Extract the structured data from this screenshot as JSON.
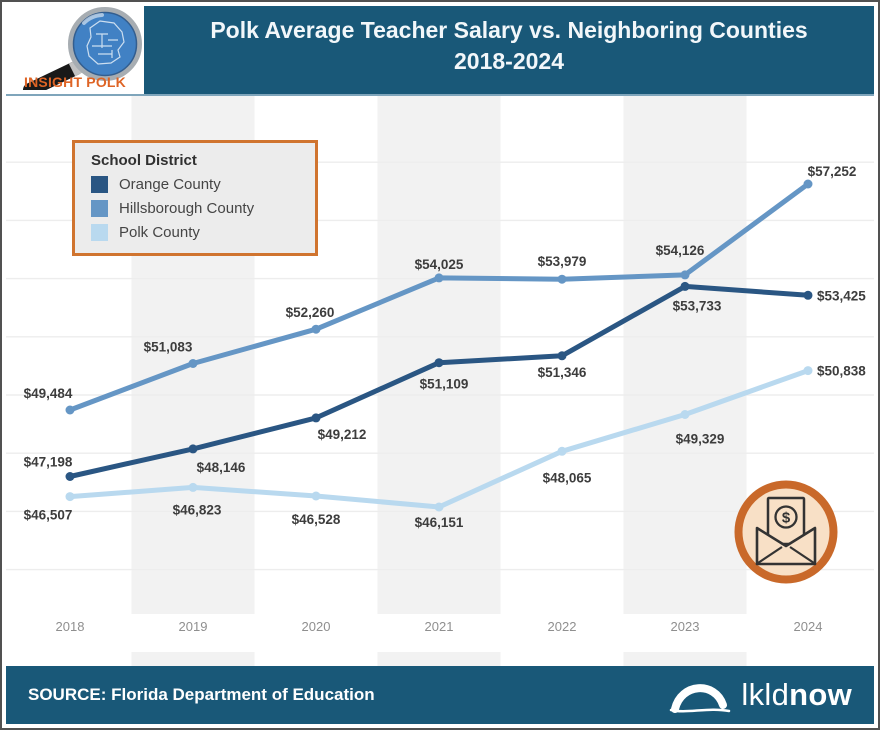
{
  "header": {
    "logo_text": "INSIGHT POLK",
    "title_line1": "Polk Average Teacher Salary vs. Neighboring Counties",
    "title_line2": "2018-2024"
  },
  "legend": {
    "title": "School District"
  },
  "chart_data": {
    "type": "line",
    "title": "Polk Average Teacher Salary vs. Neighboring Counties 2018-2024",
    "x": [
      "2018",
      "2019",
      "2020",
      "2021",
      "2022",
      "2023",
      "2024"
    ],
    "series": [
      {
        "name": "Orange County",
        "color": "#2a5683",
        "values": [
          47198,
          48146,
          49212,
          51109,
          51346,
          53733,
          53425
        ],
        "label_offsets": [
          {
            "dx": -22,
            "dy": -10
          },
          {
            "dx": 28,
            "dy": 23
          },
          {
            "dx": 26,
            "dy": 21
          },
          {
            "dx": 5,
            "dy": 26
          },
          {
            "dx": 0,
            "dy": 21
          },
          {
            "dx": 12,
            "dy": 24
          },
          {
            "dx": 9,
            "dy": 5,
            "anchor": "start"
          }
        ]
      },
      {
        "name": "Hillsborough County",
        "color": "#6596c5",
        "values": [
          49484,
          51083,
          52260,
          54025,
          53979,
          54126,
          57252
        ],
        "label_offsets": [
          {
            "dx": -22,
            "dy": -12
          },
          {
            "dx": -25,
            "dy": -12
          },
          {
            "dx": -6,
            "dy": -12
          },
          {
            "dx": 0,
            "dy": -9
          },
          {
            "dx": 0,
            "dy": -13
          },
          {
            "dx": -5,
            "dy": -20
          },
          {
            "dx": 24,
            "dy": -8
          }
        ]
      },
      {
        "name": "Polk County",
        "color": "#b9d9ef",
        "values": [
          46507,
          46823,
          46528,
          46151,
          48065,
          49329,
          50838
        ],
        "label_offsets": [
          {
            "dx": -22,
            "dy": 23
          },
          {
            "dx": 4,
            "dy": 27
          },
          {
            "dx": 0,
            "dy": 28
          },
          {
            "dx": 0,
            "dy": 20
          },
          {
            "dx": 5,
            "dy": 31
          },
          {
            "dx": 15,
            "dy": 29
          },
          {
            "dx": 9,
            "dy": 5,
            "anchor": "start"
          }
        ]
      }
    ],
    "value_prefix": "$",
    "xlabel": "",
    "ylabel": "",
    "ylim": [
      44000,
      58000
    ],
    "grid": "faint-horizontal-every-2000",
    "shaded_year_columns": [
      "2019",
      "2021",
      "2023"
    ],
    "legend_position": "top-left"
  },
  "icons": {
    "money_symbol": "$"
  },
  "footer": {
    "source": "SOURCE: Florida Department of Education",
    "brand_light": "lkld",
    "brand_bold": "now"
  },
  "colors": {
    "teal": "#195878",
    "band": "#f2f2f2",
    "gridline": "#ededed",
    "legend_bg": "#ececec",
    "legend_border": "#d0742f",
    "icon_ring": "#c9692a",
    "icon_fill": "#f8e0c6",
    "data_label_text": "#3d3d3d",
    "axis_text": "#8f8f8f",
    "logo_orange": "#de6425"
  }
}
